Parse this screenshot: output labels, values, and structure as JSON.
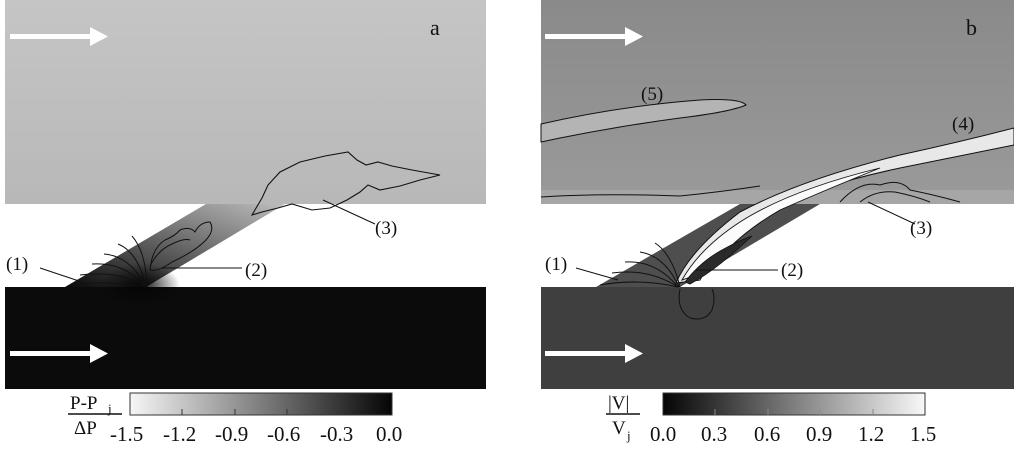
{
  "panels": [
    {
      "letter": "a",
      "labels": [
        "(1)",
        "(2)",
        "(3)"
      ],
      "colorbar": {
        "numerator": "P-P",
        "numerator_sub": "j",
        "denominator": "ΔP",
        "ticks": [
          "-1.5",
          "-1.2",
          "-0.9",
          "-0.6",
          "-0.3",
          "0.0"
        ],
        "gradient": [
          "#f6f6f6",
          "#050505"
        ]
      }
    },
    {
      "letter": "b",
      "labels": [
        "(1)",
        "(2)",
        "(3)",
        "(4)",
        "(5)"
      ],
      "colorbar": {
        "numerator": "|V|",
        "denominator": "V",
        "denominator_sub": "j",
        "ticks": [
          "0.0",
          "0.3",
          "0.6",
          "0.9",
          "1.2",
          "1.5"
        ],
        "gradient": [
          "#050505",
          "#f8f8f8"
        ]
      }
    }
  ],
  "colors": {
    "upper_field_a": "#bdbdbd",
    "lower_field_a": "#0a0a0a",
    "upper_field_b": "#8f8f8f",
    "lower_field_b": "#3f3f3f",
    "arrow": "#ffffff",
    "contour": "#111111"
  }
}
